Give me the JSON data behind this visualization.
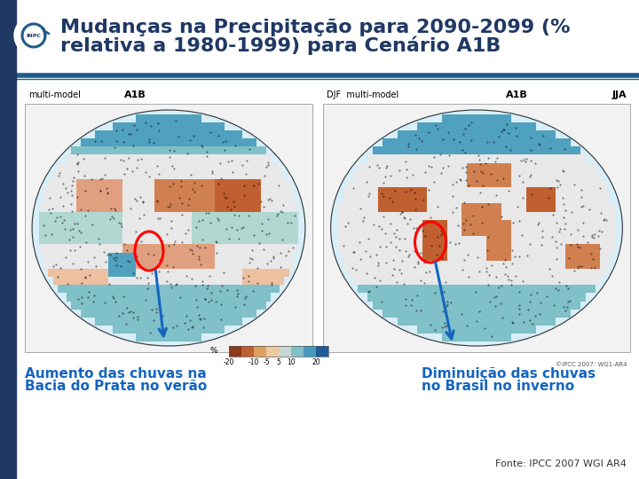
{
  "title_line1": "Mudanças na Precipitação para 2090-2099 (%",
  "title_line2": "relativa a 1980-1999) para Cenário A1B",
  "title_color": "#1F3864",
  "title_fontsize": 16,
  "background_color": "#FFFFFF",
  "header_bar_color": "#1F5C8B",
  "left_bar_color": "#1F3864",
  "annotation_left_line1": "Aumento das chuvas na",
  "annotation_left_line2": "Bacia do Prata no verão",
  "annotation_right_line1": "Diminuição das chuvas",
  "annotation_right_line2": "no Brasil no inverno",
  "annotation_color": "#1565C0",
  "annotation_fontsize": 11,
  "fonte_text": "Fonte: IPCC 2007 WGI AR4",
  "fonte_fontsize": 8,
  "fonte_color": "#333333",
  "ipcc_credit": "©IPCC 2007: WG1-AR4",
  "label_left_model": "multi-model",
  "label_left_scenario": "A1B",
  "label_right_prefix": "DJF  multi-model",
  "label_right_scenario": "A1B",
  "label_right_season": "JJA",
  "colorbar_labels": [
    "-20",
    "-10",
    "-5",
    "5",
    "10",
    "20"
  ],
  "colorbar_colors_warm": [
    "#8B3A1A",
    "#C46020",
    "#DDA060",
    "#EEC8A0"
  ],
  "colorbar_colors_cool": [
    "#C8D8D0",
    "#90C8C8",
    "#50A0C8",
    "#2060A0"
  ],
  "map_bg": "#F0F0F0",
  "map_border": "#AAAAAA",
  "globe_bg": "#DDEEFF"
}
